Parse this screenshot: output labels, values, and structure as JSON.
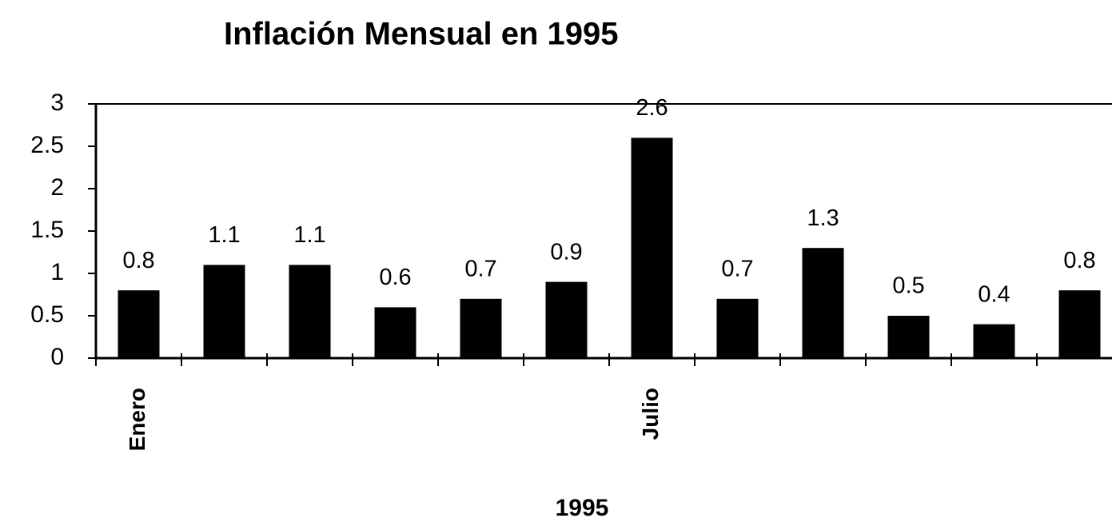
{
  "chart_data": {
    "type": "bar",
    "title": "Inflación Mensual en 1995",
    "x_label": "1995",
    "categories": [
      "Enero",
      null,
      null,
      null,
      null,
      null,
      "Julio",
      null,
      null,
      null,
      null,
      null
    ],
    "values": [
      0.8,
      1.1,
      1.1,
      0.6,
      0.7,
      0.9,
      2.6,
      0.7,
      1.3,
      0.5,
      0.4,
      0.8
    ],
    "color": "#000000",
    "ylim": [
      0,
      3
    ],
    "yticks": [
      0,
      0.5,
      1,
      1.5,
      2,
      2.5,
      3
    ],
    "grid": false
  }
}
